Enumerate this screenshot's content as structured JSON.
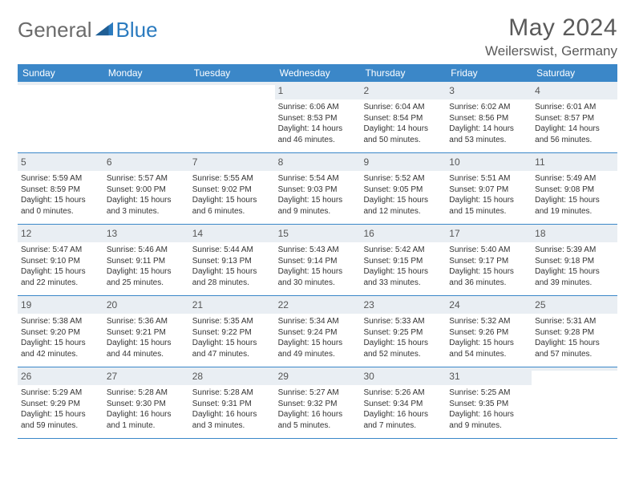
{
  "logo": {
    "general": "General",
    "blue": "Blue"
  },
  "title": "May 2024",
  "location": "Weilerswist, Germany",
  "dayHeaders": [
    "Sunday",
    "Monday",
    "Tuesday",
    "Wednesday",
    "Thursday",
    "Friday",
    "Saturday"
  ],
  "colors": {
    "headerBg": "#3b87c8",
    "headerText": "#ffffff",
    "dayBandBg": "#e9eef3",
    "bodyText": "#333333",
    "ruleColor": "#3b87c8",
    "logoGray": "#6b6b6b",
    "logoBlue": "#2b7bbf"
  },
  "weeks": [
    [
      {
        "n": "",
        "lines": []
      },
      {
        "n": "",
        "lines": []
      },
      {
        "n": "",
        "lines": []
      },
      {
        "n": "1",
        "lines": [
          "Sunrise: 6:06 AM",
          "Sunset: 8:53 PM",
          "Daylight: 14 hours",
          "and 46 minutes."
        ]
      },
      {
        "n": "2",
        "lines": [
          "Sunrise: 6:04 AM",
          "Sunset: 8:54 PM",
          "Daylight: 14 hours",
          "and 50 minutes."
        ]
      },
      {
        "n": "3",
        "lines": [
          "Sunrise: 6:02 AM",
          "Sunset: 8:56 PM",
          "Daylight: 14 hours",
          "and 53 minutes."
        ]
      },
      {
        "n": "4",
        "lines": [
          "Sunrise: 6:01 AM",
          "Sunset: 8:57 PM",
          "Daylight: 14 hours",
          "and 56 minutes."
        ]
      }
    ],
    [
      {
        "n": "5",
        "lines": [
          "Sunrise: 5:59 AM",
          "Sunset: 8:59 PM",
          "Daylight: 15 hours",
          "and 0 minutes."
        ]
      },
      {
        "n": "6",
        "lines": [
          "Sunrise: 5:57 AM",
          "Sunset: 9:00 PM",
          "Daylight: 15 hours",
          "and 3 minutes."
        ]
      },
      {
        "n": "7",
        "lines": [
          "Sunrise: 5:55 AM",
          "Sunset: 9:02 PM",
          "Daylight: 15 hours",
          "and 6 minutes."
        ]
      },
      {
        "n": "8",
        "lines": [
          "Sunrise: 5:54 AM",
          "Sunset: 9:03 PM",
          "Daylight: 15 hours",
          "and 9 minutes."
        ]
      },
      {
        "n": "9",
        "lines": [
          "Sunrise: 5:52 AM",
          "Sunset: 9:05 PM",
          "Daylight: 15 hours",
          "and 12 minutes."
        ]
      },
      {
        "n": "10",
        "lines": [
          "Sunrise: 5:51 AM",
          "Sunset: 9:07 PM",
          "Daylight: 15 hours",
          "and 15 minutes."
        ]
      },
      {
        "n": "11",
        "lines": [
          "Sunrise: 5:49 AM",
          "Sunset: 9:08 PM",
          "Daylight: 15 hours",
          "and 19 minutes."
        ]
      }
    ],
    [
      {
        "n": "12",
        "lines": [
          "Sunrise: 5:47 AM",
          "Sunset: 9:10 PM",
          "Daylight: 15 hours",
          "and 22 minutes."
        ]
      },
      {
        "n": "13",
        "lines": [
          "Sunrise: 5:46 AM",
          "Sunset: 9:11 PM",
          "Daylight: 15 hours",
          "and 25 minutes."
        ]
      },
      {
        "n": "14",
        "lines": [
          "Sunrise: 5:44 AM",
          "Sunset: 9:13 PM",
          "Daylight: 15 hours",
          "and 28 minutes."
        ]
      },
      {
        "n": "15",
        "lines": [
          "Sunrise: 5:43 AM",
          "Sunset: 9:14 PM",
          "Daylight: 15 hours",
          "and 30 minutes."
        ]
      },
      {
        "n": "16",
        "lines": [
          "Sunrise: 5:42 AM",
          "Sunset: 9:15 PM",
          "Daylight: 15 hours",
          "and 33 minutes."
        ]
      },
      {
        "n": "17",
        "lines": [
          "Sunrise: 5:40 AM",
          "Sunset: 9:17 PM",
          "Daylight: 15 hours",
          "and 36 minutes."
        ]
      },
      {
        "n": "18",
        "lines": [
          "Sunrise: 5:39 AM",
          "Sunset: 9:18 PM",
          "Daylight: 15 hours",
          "and 39 minutes."
        ]
      }
    ],
    [
      {
        "n": "19",
        "lines": [
          "Sunrise: 5:38 AM",
          "Sunset: 9:20 PM",
          "Daylight: 15 hours",
          "and 42 minutes."
        ]
      },
      {
        "n": "20",
        "lines": [
          "Sunrise: 5:36 AM",
          "Sunset: 9:21 PM",
          "Daylight: 15 hours",
          "and 44 minutes."
        ]
      },
      {
        "n": "21",
        "lines": [
          "Sunrise: 5:35 AM",
          "Sunset: 9:22 PM",
          "Daylight: 15 hours",
          "and 47 minutes."
        ]
      },
      {
        "n": "22",
        "lines": [
          "Sunrise: 5:34 AM",
          "Sunset: 9:24 PM",
          "Daylight: 15 hours",
          "and 49 minutes."
        ]
      },
      {
        "n": "23",
        "lines": [
          "Sunrise: 5:33 AM",
          "Sunset: 9:25 PM",
          "Daylight: 15 hours",
          "and 52 minutes."
        ]
      },
      {
        "n": "24",
        "lines": [
          "Sunrise: 5:32 AM",
          "Sunset: 9:26 PM",
          "Daylight: 15 hours",
          "and 54 minutes."
        ]
      },
      {
        "n": "25",
        "lines": [
          "Sunrise: 5:31 AM",
          "Sunset: 9:28 PM",
          "Daylight: 15 hours",
          "and 57 minutes."
        ]
      }
    ],
    [
      {
        "n": "26",
        "lines": [
          "Sunrise: 5:29 AM",
          "Sunset: 9:29 PM",
          "Daylight: 15 hours",
          "and 59 minutes."
        ]
      },
      {
        "n": "27",
        "lines": [
          "Sunrise: 5:28 AM",
          "Sunset: 9:30 PM",
          "Daylight: 16 hours",
          "and 1 minute."
        ]
      },
      {
        "n": "28",
        "lines": [
          "Sunrise: 5:28 AM",
          "Sunset: 9:31 PM",
          "Daylight: 16 hours",
          "and 3 minutes."
        ]
      },
      {
        "n": "29",
        "lines": [
          "Sunrise: 5:27 AM",
          "Sunset: 9:32 PM",
          "Daylight: 16 hours",
          "and 5 minutes."
        ]
      },
      {
        "n": "30",
        "lines": [
          "Sunrise: 5:26 AM",
          "Sunset: 9:34 PM",
          "Daylight: 16 hours",
          "and 7 minutes."
        ]
      },
      {
        "n": "31",
        "lines": [
          "Sunrise: 5:25 AM",
          "Sunset: 9:35 PM",
          "Daylight: 16 hours",
          "and 9 minutes."
        ]
      },
      {
        "n": "",
        "lines": []
      }
    ]
  ]
}
